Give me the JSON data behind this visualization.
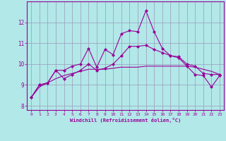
{
  "xlabel": "Windchill (Refroidissement éolien,°C)",
  "background_color": "#b2e8e8",
  "grid_color": "#9999bb",
  "line_color": "#990099",
  "x_values": [
    0,
    1,
    2,
    3,
    4,
    5,
    6,
    7,
    8,
    9,
    10,
    11,
    12,
    13,
    14,
    15,
    16,
    17,
    18,
    19,
    20,
    21,
    22,
    23
  ],
  "series1": [
    8.4,
    9.0,
    9.1,
    9.7,
    9.7,
    9.9,
    10.0,
    10.75,
    9.85,
    10.7,
    10.45,
    11.45,
    11.6,
    11.55,
    12.55,
    11.55,
    10.75,
    10.4,
    10.3,
    9.9,
    9.5,
    9.45,
    8.9,
    9.45
  ],
  "series2": [
    8.4,
    9.0,
    9.1,
    9.7,
    9.3,
    9.5,
    9.7,
    10.0,
    9.7,
    9.8,
    10.0,
    10.4,
    10.85,
    10.85,
    10.9,
    10.7,
    10.55,
    10.4,
    10.35,
    10.0,
    9.9,
    9.55,
    9.5,
    9.5
  ],
  "series3": [
    8.4,
    8.9,
    9.1,
    9.3,
    9.45,
    9.55,
    9.65,
    9.75,
    9.75,
    9.75,
    9.8,
    9.85,
    9.85,
    9.85,
    9.9,
    9.9,
    9.9,
    9.9,
    9.9,
    9.9,
    9.85,
    9.75,
    9.65,
    9.5
  ],
  "ylim": [
    7.8,
    13.0
  ],
  "xlim": [
    -0.5,
    23.5
  ],
  "yticks": [
    8,
    9,
    10,
    11,
    12
  ],
  "xticks": [
    0,
    1,
    2,
    3,
    4,
    5,
    6,
    7,
    8,
    9,
    10,
    11,
    12,
    13,
    14,
    15,
    16,
    17,
    18,
    19,
    20,
    21,
    22,
    23
  ]
}
